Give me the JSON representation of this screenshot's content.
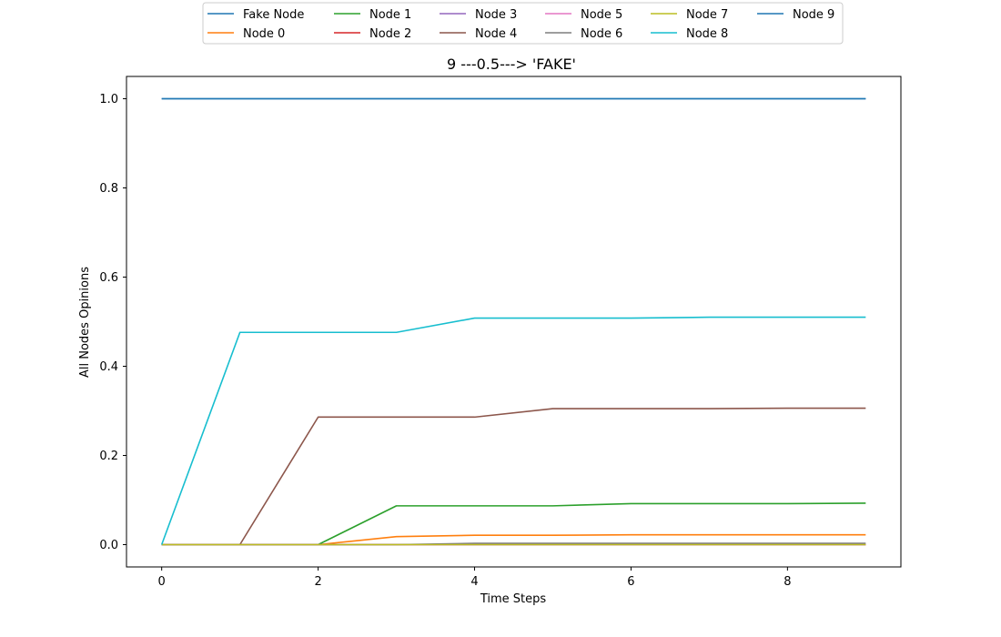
{
  "chart_data": {
    "type": "line",
    "title": "9 ---0.5---> 'FAKE'",
    "xlabel": "Time Steps",
    "ylabel": "All Nodes Opinions",
    "x": [
      0,
      1,
      2,
      3,
      4,
      5,
      6,
      7,
      8,
      9
    ],
    "xlim": [
      -0.45,
      9.45
    ],
    "ylim": [
      -0.05,
      1.05
    ],
    "xticks": [
      0,
      2,
      4,
      6,
      8
    ],
    "xtick_labels": [
      "0",
      "2",
      "4",
      "6",
      "8"
    ],
    "yticks": [
      0.0,
      0.2,
      0.4,
      0.6,
      0.8,
      1.0
    ],
    "ytick_labels": [
      "0.0",
      "0.2",
      "0.4",
      "0.6",
      "0.8",
      "1.0"
    ],
    "grid": false,
    "legend_position": "top-center",
    "legend_columns": 6,
    "series": [
      {
        "name": "Fake Node",
        "color": "#1f77b4",
        "values": [
          1,
          1,
          1,
          1,
          1,
          1,
          1,
          1,
          1,
          1
        ]
      },
      {
        "name": "Node 0",
        "color": "#ff7f0e",
        "values": [
          0,
          0,
          0,
          0.018,
          0.021,
          0.021,
          0.022,
          0.022,
          0.022,
          0.022
        ]
      },
      {
        "name": "Node 1",
        "color": "#2ca02c",
        "values": [
          0,
          0,
          0,
          0.087,
          0.087,
          0.087,
          0.092,
          0.092,
          0.092,
          0.093
        ]
      },
      {
        "name": "Node 2",
        "color": "#d62728",
        "values": [
          0,
          0,
          0,
          0,
          0,
          0,
          0,
          0,
          0,
          0
        ]
      },
      {
        "name": "Node 3",
        "color": "#9467bd",
        "values": [
          0,
          0,
          0,
          0,
          0,
          0,
          0,
          0,
          0,
          0
        ]
      },
      {
        "name": "Node 4",
        "color": "#8c564b",
        "values": [
          0,
          0,
          0.286,
          0.286,
          0.286,
          0.305,
          0.305,
          0.305,
          0.306,
          0.306
        ]
      },
      {
        "name": "Node 5",
        "color": "#e377c2",
        "values": [
          0,
          0,
          0,
          0,
          0,
          0,
          0,
          0,
          0,
          0
        ]
      },
      {
        "name": "Node 6",
        "color": "#7f7f7f",
        "values": [
          0,
          0,
          0,
          0,
          0.003,
          0.003,
          0.003,
          0.003,
          0.003,
          0.003
        ]
      },
      {
        "name": "Node 7",
        "color": "#bcbd22",
        "values": [
          0,
          0,
          0,
          0,
          0,
          0,
          0,
          0,
          0,
          0
        ]
      },
      {
        "name": "Node 8",
        "color": "#17becf",
        "values": [
          0,
          0.476,
          0.476,
          0.476,
          0.508,
          0.508,
          0.508,
          0.51,
          0.51,
          0.51
        ]
      },
      {
        "name": "Node 9",
        "color": "#1f77b4",
        "values": [
          1,
          1,
          1,
          1,
          1,
          1,
          1,
          1,
          1,
          1
        ]
      }
    ]
  }
}
